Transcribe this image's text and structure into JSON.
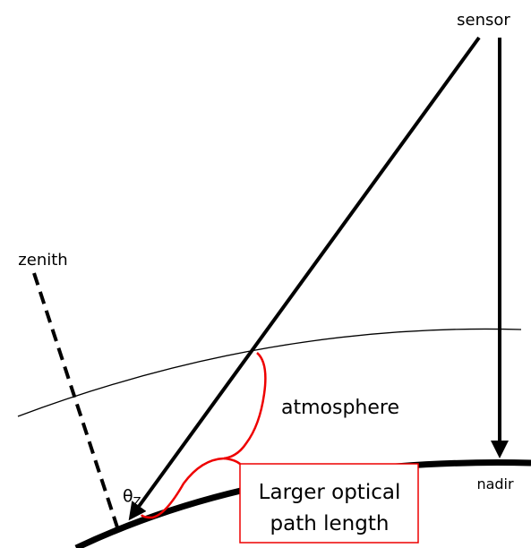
{
  "labels": {
    "sensor": "sensor",
    "zenith": "zenith",
    "theta": "θ",
    "theta_sub": "Z",
    "atmosphere": "atmosphere",
    "nadir": "nadir",
    "box": [
      "Larger optical",
      "path length"
    ]
  }
}
